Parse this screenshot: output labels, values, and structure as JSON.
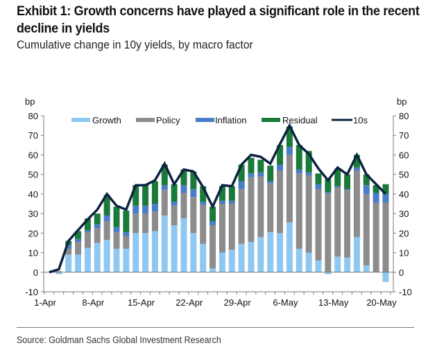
{
  "header": {
    "title": "Exhibit 1: Growth concerns have played a significant role in the recent decline in yields",
    "subtitle": "Cumulative change in 10y yields, by macro factor"
  },
  "footer": {
    "source": "Source: Goldman Sachs Global Investment Research"
  },
  "colors": {
    "growth": "#8ec8f2",
    "policy": "#8c8c8c",
    "inflation": "#4a7cc9",
    "residual": "#1a7a3a",
    "tens": "#0d2240",
    "axis": "#777777"
  },
  "chart_data": {
    "type": "bar",
    "stacked": true,
    "title": "Exhibit 1: Growth concerns have played a significant role in the recent decline in yields",
    "subtitle": "Cumulative change in 10y yields, by macro factor",
    "ylabel_left": "bp",
    "ylabel_right": "bp",
    "ylim": [
      -10,
      80
    ],
    "yticks": [
      -10,
      0,
      10,
      20,
      30,
      40,
      50,
      60,
      70,
      80
    ],
    "xtick_labels": [
      "1-Apr",
      "8-Apr",
      "15-Apr",
      "22-Apr",
      "29-Apr",
      "6-May",
      "13-May",
      "20-May"
    ],
    "xtick_label_indices": [
      0,
      5,
      10,
      15,
      20,
      25,
      30,
      35
    ],
    "legend": [
      "Growth",
      "Policy",
      "Inflation",
      "Residual",
      "10s"
    ],
    "legend_position": "top",
    "grid": false,
    "x": [
      "1-Apr",
      "2-Apr",
      "3-Apr",
      "4-Apr",
      "5-Apr",
      "8-Apr",
      "9-Apr",
      "10-Apr",
      "11-Apr",
      "12-Apr",
      "15-Apr",
      "16-Apr",
      "17-Apr",
      "18-Apr",
      "19-Apr",
      "22-Apr",
      "23-Apr",
      "24-Apr",
      "25-Apr",
      "26-Apr",
      "29-Apr",
      "30-Apr",
      "1-May",
      "2-May",
      "3-May",
      "6-May",
      "7-May",
      "8-May",
      "9-May",
      "10-May",
      "13-May",
      "14-May",
      "15-May",
      "16-May",
      "17-May",
      "20-May"
    ],
    "series": [
      {
        "name": "Growth",
        "kind": "bar",
        "values": [
          0,
          -1,
          9,
          9,
          12.5,
          15,
          16.5,
          12,
          12,
          20,
          20,
          21,
          29,
          24,
          27.5,
          20,
          14.5,
          2,
          10,
          11.5,
          14.5,
          15.5,
          18,
          20.5,
          20,
          25.5,
          12,
          10,
          6,
          -1,
          8,
          7.5,
          18,
          3.5,
          0,
          -5
        ]
      },
      {
        "name": "Policy",
        "kind": "bar",
        "values": [
          0,
          0.5,
          3,
          6.5,
          8,
          7.5,
          9.5,
          8.5,
          6.5,
          10,
          10,
          10,
          13,
          10,
          13,
          18.5,
          20,
          22,
          25,
          23.5,
          28,
          33,
          31,
          25,
          32,
          34.5,
          38.5,
          39.5,
          36.5,
          40.5,
          35.5,
          34.5,
          34,
          36.5,
          35.5,
          35.5
        ]
      },
      {
        "name": "Inflation",
        "kind": "bar",
        "values": [
          0,
          0,
          2,
          1.5,
          1,
          2,
          3,
          2.5,
          2,
          4,
          4,
          4,
          2.5,
          2,
          4,
          4,
          1.5,
          2,
          1.5,
          1.5,
          4,
          2,
          2,
          1,
          3,
          4,
          2,
          1.5,
          2.5,
          0.5,
          0.5,
          0.5,
          1.5,
          4.5,
          5,
          4.5
        ]
      },
      {
        "name": "Residual",
        "kind": "bar",
        "values": [
          0,
          0,
          2,
          4,
          6,
          5.5,
          10.5,
          10.5,
          11,
          10.5,
          10.5,
          11.5,
          10.5,
          9,
          8,
          9,
          8,
          7.5,
          7.5,
          7.5,
          8.5,
          8,
          6.5,
          8,
          10,
          10.5,
          12.5,
          11,
          5.5,
          6.5,
          9,
          7.5,
          6.5,
          5.5,
          4,
          5
        ]
      },
      {
        "name": "10s",
        "kind": "line",
        "values": [
          0,
          1.5,
          16,
          21.5,
          27,
          32,
          40,
          34,
          32,
          44.5,
          44.5,
          47,
          55.5,
          45,
          52.5,
          51.5,
          43.5,
          33.5,
          44.5,
          44,
          55,
          60,
          59,
          55.5,
          65.5,
          75,
          65,
          60.5,
          53,
          47,
          53.5,
          50,
          60,
          50,
          45,
          40
        ]
      }
    ]
  }
}
